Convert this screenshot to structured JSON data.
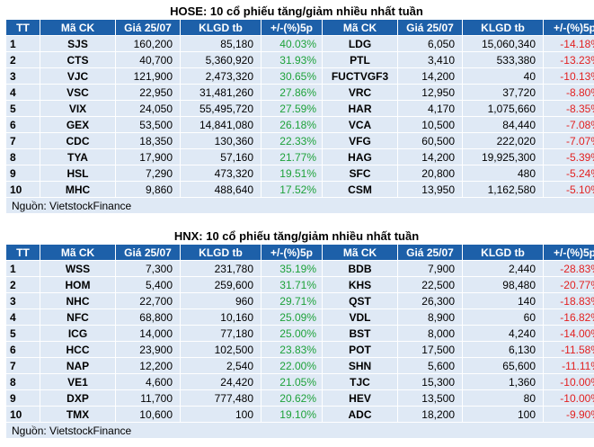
{
  "hose": {
    "title": "HOSE: 10 cổ phiếu tăng/giảm nhiều nhất tuần",
    "headers": [
      "TT",
      "Mã CK",
      "Giá 25/07",
      "KLGD tb",
      "+/-(%)5p",
      "Mã CK",
      "Giá 25/07",
      "KLGD tb",
      "+/-(%)5p"
    ],
    "rows": [
      {
        "tt": "1",
        "up_sym": "SJS",
        "up_price": "160,200",
        "up_vol": "85,180",
        "up_pct": "40.03%",
        "down_sym": "LDG",
        "down_price": "6,050",
        "down_vol": "15,060,340",
        "down_pct": "-14.18%"
      },
      {
        "tt": "2",
        "up_sym": "CTS",
        "up_price": "40,700",
        "up_vol": "5,360,920",
        "up_pct": "31.93%",
        "down_sym": "PTL",
        "down_price": "3,410",
        "down_vol": "533,380",
        "down_pct": "-13.23%"
      },
      {
        "tt": "3",
        "up_sym": "VJC",
        "up_price": "121,900",
        "up_vol": "2,473,320",
        "up_pct": "30.65%",
        "down_sym": "FUCTVGF3",
        "down_price": "14,200",
        "down_vol": "40",
        "down_pct": "-10.13%"
      },
      {
        "tt": "4",
        "up_sym": "VSC",
        "up_price": "22,950",
        "up_vol": "31,481,260",
        "up_pct": "27.86%",
        "down_sym": "VRC",
        "down_price": "12,950",
        "down_vol": "37,720",
        "down_pct": "-8.80%"
      },
      {
        "tt": "5",
        "up_sym": "VIX",
        "up_price": "24,050",
        "up_vol": "55,495,720",
        "up_pct": "27.59%",
        "down_sym": "HAR",
        "down_price": "4,170",
        "down_vol": "1,075,660",
        "down_pct": "-8.35%"
      },
      {
        "tt": "6",
        "up_sym": "GEX",
        "up_price": "53,500",
        "up_vol": "14,841,080",
        "up_pct": "26.18%",
        "down_sym": "VCA",
        "down_price": "10,500",
        "down_vol": "84,440",
        "down_pct": "-7.08%"
      },
      {
        "tt": "7",
        "up_sym": "CDC",
        "up_price": "18,350",
        "up_vol": "130,360",
        "up_pct": "22.33%",
        "down_sym": "VFG",
        "down_price": "60,500",
        "down_vol": "222,020",
        "down_pct": "-7.07%"
      },
      {
        "tt": "8",
        "up_sym": "TYA",
        "up_price": "17,900",
        "up_vol": "57,160",
        "up_pct": "21.77%",
        "down_sym": "HAG",
        "down_price": "14,200",
        "down_vol": "19,925,300",
        "down_pct": "-5.39%"
      },
      {
        "tt": "9",
        "up_sym": "HSL",
        "up_price": "7,290",
        "up_vol": "473,320",
        "up_pct": "19.51%",
        "down_sym": "SFC",
        "down_price": "20,800",
        "down_vol": "480",
        "down_pct": "-5.24%"
      },
      {
        "tt": "10",
        "up_sym": "MHC",
        "up_price": "9,860",
        "up_vol": "488,640",
        "up_pct": "17.52%",
        "down_sym": "CSM",
        "down_price": "13,950",
        "down_vol": "1,162,580",
        "down_pct": "-5.10%"
      }
    ],
    "source": "Nguồn: VietstockFinance"
  },
  "hnx": {
    "title": "HNX: 10 cổ phiếu tăng/giảm nhiều nhất tuần",
    "headers": [
      "TT",
      "Mã CK",
      "Giá 25/07",
      "KLGD tb",
      "+/-(%)5p",
      "Mã CK",
      "Giá 25/07",
      "KLGD tb",
      "+/-(%)5p"
    ],
    "rows": [
      {
        "tt": "1",
        "up_sym": "WSS",
        "up_price": "7,300",
        "up_vol": "231,780",
        "up_pct": "35.19%",
        "down_sym": "BDB",
        "down_price": "7,900",
        "down_vol": "2,440",
        "down_pct": "-28.83%"
      },
      {
        "tt": "2",
        "up_sym": "HOM",
        "up_price": "5,400",
        "up_vol": "259,600",
        "up_pct": "31.71%",
        "down_sym": "KHS",
        "down_price": "22,500",
        "down_vol": "98,480",
        "down_pct": "-20.77%"
      },
      {
        "tt": "3",
        "up_sym": "NHC",
        "up_price": "22,700",
        "up_vol": "960",
        "up_pct": "29.71%",
        "down_sym": "QST",
        "down_price": "26,300",
        "down_vol": "140",
        "down_pct": "-18.83%"
      },
      {
        "tt": "4",
        "up_sym": "NFC",
        "up_price": "68,800",
        "up_vol": "10,160",
        "up_pct": "25.09%",
        "down_sym": "VDL",
        "down_price": "8,900",
        "down_vol": "60",
        "down_pct": "-16.82%"
      },
      {
        "tt": "5",
        "up_sym": "ICG",
        "up_price": "14,000",
        "up_vol": "77,180",
        "up_pct": "25.00%",
        "down_sym": "BST",
        "down_price": "8,000",
        "down_vol": "4,240",
        "down_pct": "-14.00%"
      },
      {
        "tt": "6",
        "up_sym": "HCC",
        "up_price": "23,900",
        "up_vol": "102,500",
        "up_pct": "23.83%",
        "down_sym": "POT",
        "down_price": "17,500",
        "down_vol": "6,130",
        "down_pct": "-11.58%"
      },
      {
        "tt": "7",
        "up_sym": "NAP",
        "up_price": "12,200",
        "up_vol": "2,540",
        "up_pct": "22.00%",
        "down_sym": "SHN",
        "down_price": "5,600",
        "down_vol": "65,600",
        "down_pct": "-11.11%"
      },
      {
        "tt": "8",
        "up_sym": "VE1",
        "up_price": "4,600",
        "up_vol": "24,420",
        "up_pct": "21.05%",
        "down_sym": "TJC",
        "down_price": "15,300",
        "down_vol": "1,360",
        "down_pct": "-10.00%"
      },
      {
        "tt": "9",
        "up_sym": "DXP",
        "up_price": "11,700",
        "up_vol": "777,480",
        "up_pct": "20.62%",
        "down_sym": "HEV",
        "down_price": "13,500",
        "down_vol": "80",
        "down_pct": "-10.00%"
      },
      {
        "tt": "10",
        "up_sym": "TMX",
        "up_price": "10,600",
        "up_vol": "100",
        "up_pct": "19.10%",
        "down_sym": "ADC",
        "down_price": "18,200",
        "down_vol": "100",
        "down_pct": "-9.90%"
      }
    ],
    "source": "Nguồn: VietstockFinance"
  },
  "colors": {
    "header_bg": "#1d60a9",
    "row_bg": "#dfe9f5",
    "positive": "#1ea23a",
    "negative": "#e22121"
  }
}
